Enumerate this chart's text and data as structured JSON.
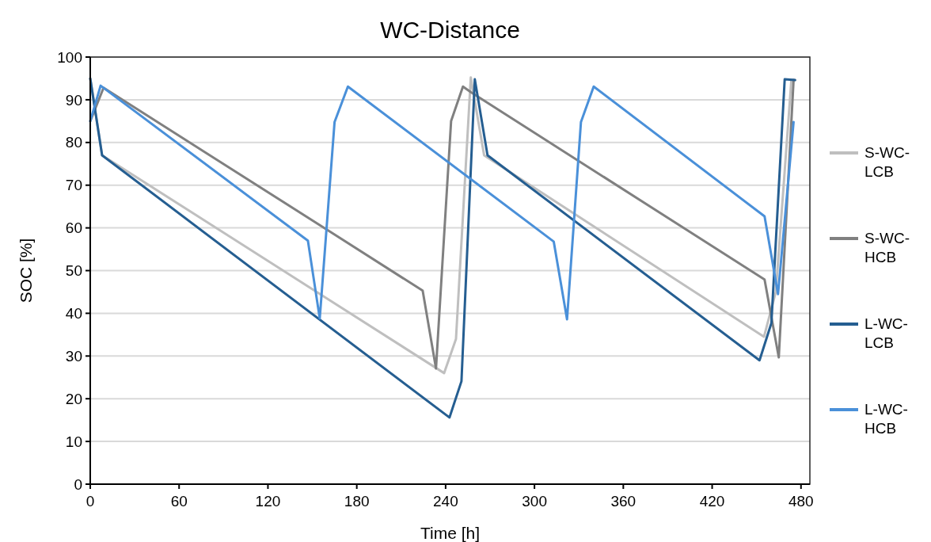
{
  "chart_data": {
    "type": "line",
    "title": "WC-Distance",
    "xlabel": "Time [h]",
    "ylabel": "SOC [%]",
    "xlim": [
      0,
      486
    ],
    "xticks": [
      0,
      60,
      120,
      180,
      240,
      300,
      360,
      420,
      480
    ],
    "ylim": [
      0,
      100
    ],
    "yticks": [
      0,
      10,
      20,
      30,
      40,
      50,
      60,
      70,
      80,
      90,
      100
    ],
    "grid": "y",
    "legend": "right",
    "marker": "none",
    "line_style": "solid",
    "series": [
      {
        "name": "S-WC-LCB",
        "color": "#bfbfbf",
        "x": [
          0,
          8,
          162,
          239,
          247,
          257,
          266,
          455,
          463,
          473.5,
          476
        ],
        "values": [
          95,
          77,
          43,
          26,
          34,
          95.2,
          77,
          34.5,
          45,
          94.6,
          94.6
        ]
      },
      {
        "name": "S-WC-HCB",
        "color": "#808080",
        "x": [
          0,
          9,
          162.5,
          224.5,
          233.5,
          243.7,
          251.7,
          257,
          455.4,
          465,
          475
        ],
        "values": [
          85,
          92.8,
          59,
          45.3,
          27.1,
          85,
          93.1,
          91.8,
          47.9,
          29.7,
          94.6
        ]
      },
      {
        "name": "L-WC-LCB",
        "color": "#255e91",
        "x": [
          0,
          8,
          242.6,
          250.7,
          259.7,
          268.3,
          452,
          460,
          469,
          476
        ],
        "values": [
          95,
          77,
          15.6,
          24.1,
          94.8,
          77,
          29,
          37.7,
          94.8,
          94.6
        ]
      },
      {
        "name": "L-WC-HCB",
        "color": "#4a90d9",
        "x": [
          0,
          7,
          147,
          155,
          165,
          174,
          313,
          322,
          331.4,
          340,
          455.4,
          464.5,
          475
        ],
        "values": [
          85,
          93.3,
          57,
          38.8,
          84.8,
          93.1,
          56.8,
          38.6,
          84.8,
          93.1,
          62.7,
          44.5,
          84.8
        ]
      }
    ]
  }
}
